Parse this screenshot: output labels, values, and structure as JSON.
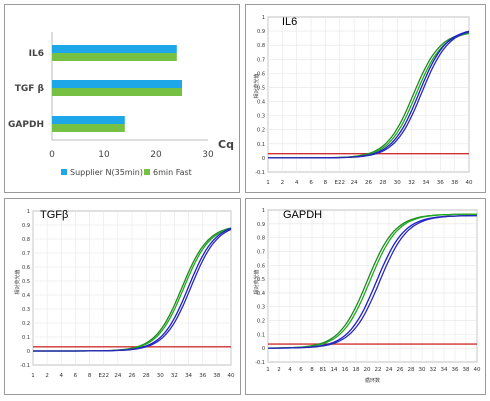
{
  "chart_data": [
    {
      "type": "bar",
      "orientation": "horizontal",
      "categories": [
        "IL6",
        "TGF β",
        "GAPDH"
      ],
      "series": [
        {
          "name": "Supplier N(35min)",
          "values": [
            24,
            25,
            14
          ],
          "color": "#1ea7e8"
        },
        {
          "name": "6min Fast",
          "values": [
            24,
            25,
            14
          ],
          "color": "#76c043"
        }
      ],
      "xlabel": "Cq",
      "xlim": [
        0,
        30
      ],
      "xticks": [
        "0",
        "10",
        "20",
        "30"
      ],
      "legend": "bottom"
    },
    {
      "type": "line",
      "title": "IL6",
      "ylabel": "相对荧光值",
      "xlabel": "",
      "xlim": [
        1,
        40
      ],
      "ylim": [
        -0.1,
        1.0
      ],
      "xticks": [
        "1",
        "2",
        "4",
        "6",
        "8",
        "E22",
        "24",
        "26",
        "28",
        "30",
        "32",
        "34",
        "36",
        "38",
        "40"
      ],
      "yticks": [
        "-0.1",
        "0",
        "0.1",
        "0.2",
        "0.3",
        "0.4",
        "0.5",
        "0.6",
        "0.7",
        "0.8",
        "0.9",
        "1"
      ],
      "threshold": 0.03,
      "midpoints": [
        29.2,
        29.7,
        30.3,
        30.8
      ],
      "plateaus": [
        0.9,
        0.9,
        0.92,
        0.92
      ],
      "colors": [
        "#1f8a1f",
        "#22a822",
        "#1d1dd0",
        "#2a2ab8"
      ],
      "threshold_color": "#d03030"
    },
    {
      "type": "line",
      "title": "TGFβ",
      "ylabel": "相对荧光值",
      "xlabel": "",
      "xlim": [
        1,
        40
      ],
      "ylim": [
        -0.1,
        1.0
      ],
      "xticks": [
        "1",
        "2",
        "4",
        "6",
        "8",
        "E22",
        "24",
        "26",
        "28",
        "30",
        "32",
        "34",
        "36",
        "38",
        "40"
      ],
      "yticks": [
        "-0.1",
        "0",
        "0.1",
        "0.2",
        "0.3",
        "0.4",
        "0.5",
        "0.6",
        "0.7",
        "0.8",
        "0.9",
        "1"
      ],
      "threshold": 0.03,
      "midpoints": [
        30.3,
        30.7,
        31.6,
        32.1
      ],
      "plateaus": [
        0.9,
        0.9,
        0.91,
        0.91
      ],
      "colors": [
        "#1f8a1f",
        "#22a822",
        "#1d1dd0",
        "#2a2ab8"
      ],
      "threshold_color": "#d03030"
    },
    {
      "type": "line",
      "title": "GAPDH",
      "ylabel": "相对荧光值",
      "xlabel": "循环数",
      "xlim": [
        1,
        40
      ],
      "ylim": [
        -0.1,
        1.0
      ],
      "xticks": [
        "1",
        "2",
        "4",
        "6",
        "8",
        "81",
        "14",
        "16",
        "18",
        "20",
        "22",
        "24",
        "26",
        "28",
        "30",
        "32",
        "34",
        "36",
        "38",
        "40"
      ],
      "yticks": [
        "-0.1",
        "0",
        "0.1",
        "0.2",
        "0.3",
        "0.4",
        "0.5",
        "0.6",
        "0.7",
        "0.8",
        "0.9",
        "1"
      ],
      "threshold": 0.03,
      "midpoints": [
        19.5,
        20.0,
        21.2,
        21.8
      ],
      "plateaus": [
        0.97,
        0.97,
        0.96,
        0.96
      ],
      "colors": [
        "#1f8a1f",
        "#22a822",
        "#1d1dd0",
        "#2a2ab8"
      ],
      "threshold_color": "#d03030"
    }
  ]
}
